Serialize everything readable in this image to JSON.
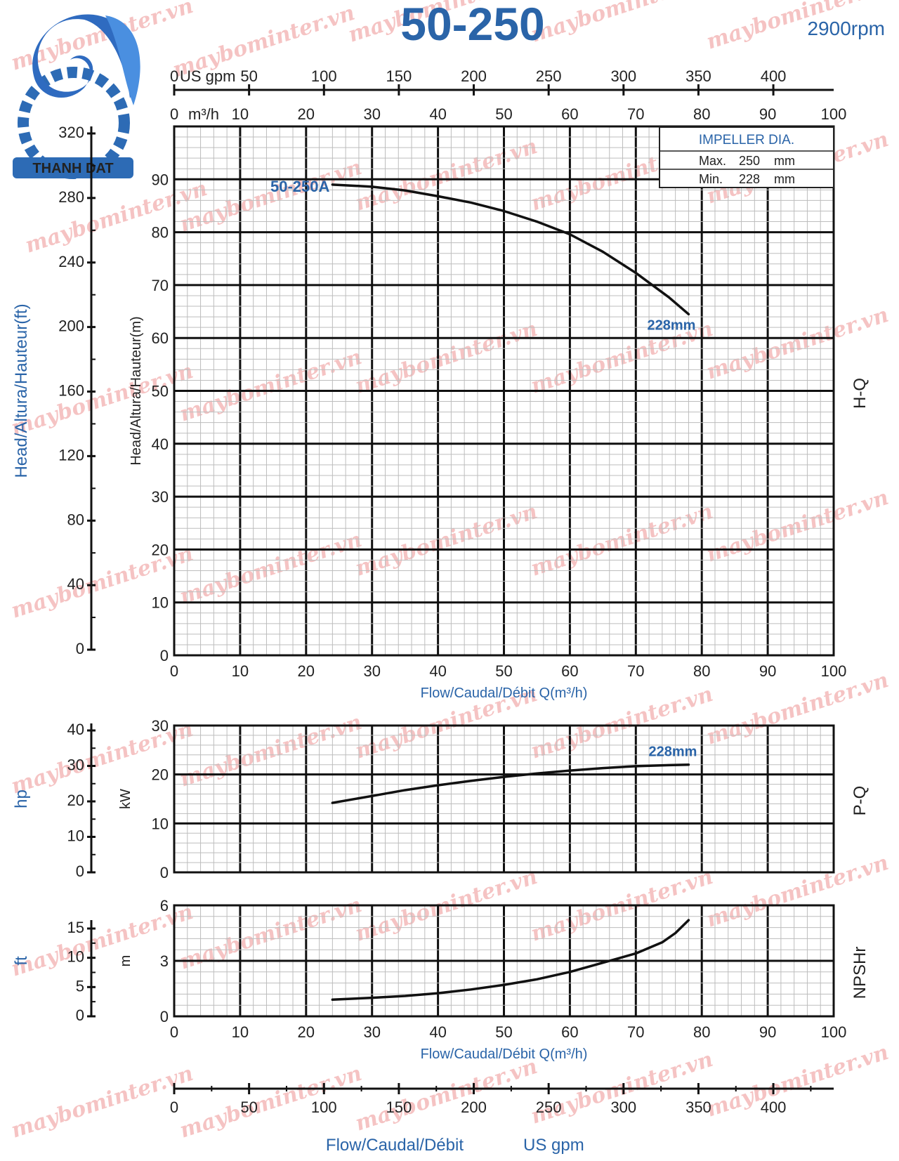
{
  "title": "50-250",
  "speed": "2900rpm",
  "brand": {
    "name": "THANH DAT"
  },
  "watermark": "maybominter.vn",
  "impeller": {
    "heading": "IMPELLER DIA.",
    "max_label": "Max.",
    "max_value": "250",
    "max_unit": "mm",
    "min_label": "Min.",
    "min_value": "228",
    "min_unit": "mm"
  },
  "top_axes": {
    "usgpm_unit": "US gpm",
    "usgpm_ticks": [
      "0",
      "50",
      "100",
      "150",
      "200",
      "250",
      "300",
      "350",
      "400"
    ],
    "m3h_unit": "m³/h",
    "m3h_ticks": [
      "0",
      "10",
      "20",
      "30",
      "40",
      "50",
      "60",
      "70",
      "80",
      "90",
      "100"
    ]
  },
  "chart_data": [
    {
      "type": "line",
      "name": "H-Q",
      "side_label": "H-Q",
      "x_range": [
        0,
        100
      ],
      "ylim": [
        0,
        100
      ],
      "y_ticks": [
        0,
        10,
        20,
        30,
        40,
        50,
        60,
        70,
        80,
        90
      ],
      "ylabel": "Head/Altura/Hauteur(m)",
      "secondary_ylabel": "Head/Altura/Hauteur(ft)",
      "secondary_ticks": [
        "0",
        "40",
        "80",
        "120",
        "160",
        "200",
        "240",
        "280",
        "320"
      ],
      "x_ticks": [
        "0",
        "10",
        "20",
        "30",
        "40",
        "50",
        "60",
        "70",
        "80",
        "90",
        "100"
      ],
      "xlabel": "Flow/Caudal/Débit Q(m³/h)",
      "grid": true,
      "series": [
        {
          "label": "50-250A",
          "end_label": "228mm",
          "points": [
            [
              24,
              89
            ],
            [
              30,
              88.6
            ],
            [
              35,
              87.9
            ],
            [
              40,
              86.8
            ],
            [
              45,
              85.6
            ],
            [
              50,
              84.0
            ],
            [
              55,
              82.0
            ],
            [
              60,
              79.6
            ],
            [
              65,
              76.3
            ],
            [
              70,
              72.3
            ],
            [
              75,
              67.7
            ],
            [
              78,
              64.5
            ]
          ]
        }
      ]
    },
    {
      "type": "line",
      "name": "P-Q",
      "side_label": "P-Q",
      "x_range": [
        0,
        100
      ],
      "ylim": [
        0,
        30
      ],
      "y_ticks": [
        0,
        10,
        20,
        30
      ],
      "ylabel": "kW",
      "secondary_ylabel": "hp",
      "secondary_ticks": [
        "0",
        "10",
        "20",
        "30",
        "40"
      ],
      "grid": true,
      "series": [
        {
          "label": "228mm",
          "points": [
            [
              24,
              14.2
            ],
            [
              30,
              15.6
            ],
            [
              35,
              16.8
            ],
            [
              40,
              17.8
            ],
            [
              45,
              18.7
            ],
            [
              50,
              19.5
            ],
            [
              55,
              20.2
            ],
            [
              60,
              20.8
            ],
            [
              65,
              21.3
            ],
            [
              70,
              21.7
            ],
            [
              75,
              21.9
            ],
            [
              78,
              22.0
            ]
          ]
        }
      ]
    },
    {
      "type": "line",
      "name": "NPSHr",
      "side_label": "NPSHr",
      "x_range": [
        0,
        100
      ],
      "ylim": [
        0,
        6
      ],
      "y_ticks": [
        0,
        3,
        6
      ],
      "ylabel": "m",
      "secondary_ylabel": "ft",
      "secondary_ticks": [
        "0",
        "5",
        "10",
        "15"
      ],
      "x_ticks": [
        "0",
        "10",
        "20",
        "30",
        "40",
        "50",
        "60",
        "70",
        "80",
        "90",
        "100"
      ],
      "xlabel": "Flow/Caudal/Débit Q(m³/h)",
      "grid": true,
      "series": [
        {
          "points": [
            [
              24,
              0.9
            ],
            [
              30,
              1.0
            ],
            [
              35,
              1.1
            ],
            [
              40,
              1.25
            ],
            [
              45,
              1.45
            ],
            [
              50,
              1.7
            ],
            [
              55,
              2.0
            ],
            [
              60,
              2.4
            ],
            [
              65,
              2.9
            ],
            [
              70,
              3.4
            ],
            [
              74,
              4.0
            ],
            [
              76,
              4.5
            ],
            [
              78,
              5.2
            ]
          ]
        }
      ]
    }
  ],
  "bottom_axis": {
    "ticks": [
      "0",
      "50",
      "100",
      "150",
      "200",
      "250",
      "300",
      "350",
      "400"
    ],
    "label_prefix": "Flow/Caudal/Débit",
    "label_unit": "US gpm"
  }
}
